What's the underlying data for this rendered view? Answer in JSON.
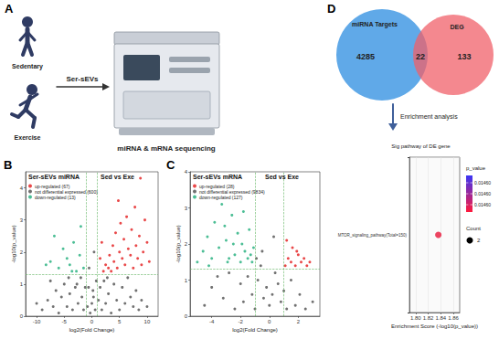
{
  "panel_a": {
    "letter": "A",
    "groups": [
      "Sedentary",
      "Exercise"
    ],
    "arrow_label": "Ser-sEVs",
    "machine_label": "miRNA & mRNA sequencing"
  },
  "venn": {
    "letter": "D",
    "sets": [
      {
        "label": "miRNA Targets",
        "count": 4285,
        "color": "#4fa0e6"
      },
      {
        "label": "DEG",
        "count": 133,
        "color": "#f0606a"
      }
    ],
    "overlap": 22,
    "arrow_label": "Enrichment analysis"
  },
  "chart_data": [
    {
      "type": "scatter",
      "panel": "B",
      "title": "Ser-sEVs miRNA",
      "subtitle": "Sed vs Exe",
      "xlabel": "log2(Fold Change)",
      "ylabel": "-log10(p_value)",
      "xlim": [
        -12,
        12
      ],
      "xticks": [
        -10,
        -5,
        0,
        5,
        10
      ],
      "ylim": [
        0,
        4.5
      ],
      "yticks": [
        0,
        1,
        2,
        3,
        4
      ],
      "grid": false,
      "legend": "top-left",
      "marker": "circle",
      "threshold_lines": {
        "x": [
          -1,
          1
        ],
        "y": [
          1.3
        ]
      },
      "series": [
        {
          "name": "up-regulated (67)",
          "color": "#e41a1c",
          "x": [
            1.5,
            1.8,
            2.1,
            2.5,
            3.0,
            3.2,
            3.5,
            3.8,
            4.0,
            4.3,
            4.6,
            4.8,
            5.0,
            5.2,
            5.5,
            5.8,
            6.0,
            6.3,
            6.6,
            7.0,
            7.2,
            7.5,
            7.8,
            8.0,
            8.3,
            8.6,
            8.8,
            9.0,
            9.3,
            9.6,
            10.0,
            10.4
          ],
          "values": [
            1.8,
            2.3,
            1.4,
            1.6,
            1.5,
            1.9,
            1.4,
            2.2,
            1.7,
            2.6,
            1.5,
            3.6,
            2.0,
            2.9,
            1.8,
            2.4,
            1.6,
            3.1,
            2.1,
            1.9,
            2.7,
            1.5,
            3.4,
            2.2,
            1.8,
            2.5,
            4.3,
            1.6,
            2.0,
            3.0,
            2.3,
            1.7
          ]
        },
        {
          "name": "not differential expressed (600)",
          "color": "#4d4d4d",
          "x": [
            -10,
            -9,
            -8,
            -7.5,
            -7,
            -6.5,
            -6,
            -5.5,
            -5,
            -4.5,
            -4.2,
            -4,
            -3.5,
            -3,
            -2.7,
            -2.5,
            -2,
            -1.8,
            -1.5,
            -1.2,
            -0.8,
            -0.6,
            -0.5,
            -0.3,
            0,
            0.2,
            0.3,
            0.4,
            0.6,
            0.8,
            1.2,
            1.5,
            1.8,
            2.2,
            2.5,
            2.8,
            3,
            3.5,
            4,
            4.5,
            5,
            5.5,
            6,
            6.5,
            7,
            7.5,
            8,
            8.5,
            9,
            10
          ],
          "values": [
            0.4,
            0.2,
            0.5,
            1.1,
            0.3,
            0.8,
            0.1,
            0.6,
            1.0,
            0.3,
            1.2,
            0.7,
            0.2,
            0.9,
            1.0,
            0.4,
            1.2,
            0.6,
            0.2,
            0.9,
            0.3,
            0.9,
            1.5,
            0.1,
            0.4,
            0.8,
            0.6,
            2.0,
            0.2,
            1.1,
            0.5,
            0.9,
            0.2,
            1.1,
            0.4,
            1.2,
            0.7,
            0.1,
            1.0,
            0.5,
            0.2,
            0.9,
            0.4,
            1.2,
            0.6,
            0.3,
            0.8,
            0.2,
            0.5,
            0.3
          ]
        },
        {
          "name": "down-regulated (13)",
          "color": "#1fae7a",
          "x": [
            -8.3,
            -7.5,
            -6.8,
            -6.0,
            -5.2,
            -4.5,
            -4.0,
            -3.6,
            -3.3,
            -2.8,
            -2.2,
            -2.0,
            -1.5
          ],
          "values": [
            1.6,
            1.7,
            2.5,
            1.5,
            2.1,
            1.8,
            1.6,
            1.4,
            2.3,
            1.4,
            1.9,
            2.8,
            1.5
          ]
        }
      ]
    },
    {
      "type": "scatter",
      "panel": "C",
      "title": "Ser-sEVs mRNA",
      "subtitle": "Sed vs Exe",
      "xlabel": "log2(Fold Change)",
      "ylabel": "-log10(p_value)",
      "xlim": [
        -5.5,
        3.5
      ],
      "xticks": [
        -4,
        -2,
        0,
        2
      ],
      "ylim": [
        0,
        4
      ],
      "yticks": [
        0,
        1,
        2,
        3,
        4
      ],
      "grid": false,
      "legend": "top-left",
      "marker": "circle",
      "threshold_lines": {
        "x": [
          -1,
          1
        ],
        "y": [
          1.3
        ]
      },
      "series": [
        {
          "name": "up-regulated (28)",
          "color": "#e41a1c",
          "x": [
            1.1,
            1.3,
            1.5,
            1.6,
            1.8,
            2.0,
            2.2,
            2.4,
            2.6,
            1.2,
            1.9,
            2.8
          ],
          "values": [
            1.4,
            1.6,
            1.5,
            1.9,
            1.4,
            1.7,
            1.5,
            1.6,
            1.4,
            2.1,
            1.8,
            1.5
          ]
        },
        {
          "name": "not differential expressed (9834)",
          "color": "#4d4d4d",
          "x": [
            -4.5,
            -4,
            -3.6,
            -3.2,
            -2.8,
            -2.4,
            -2,
            -1.8,
            -1.5,
            -1.2,
            -1,
            -0.8,
            -0.6,
            -0.4,
            -0.2,
            0,
            0.2,
            0.4,
            0.6,
            0.8,
            1,
            1.2,
            1.5,
            1.8,
            2.1,
            2.5,
            3,
            -0.5,
            0.3,
            -0.9
          ],
          "values": [
            0.3,
            0.8,
            1.1,
            0.5,
            1.2,
            0.2,
            0.9,
            0.4,
            1.1,
            0.6,
            0.2,
            1.0,
            1.4,
            0.5,
            0.8,
            0.3,
            0.6,
            1.2,
            0.9,
            0.4,
            0.7,
            0.2,
            1.0,
            0.3,
            0.6,
            0.2,
            0.4,
            1.8,
            2.2,
            1.6
          ]
        },
        {
          "name": "down-regulated (127)",
          "color": "#1fae7a",
          "x": [
            -5.0,
            -4.6,
            -4.3,
            -4.0,
            -3.8,
            -3.5,
            -3.3,
            -3.0,
            -2.8,
            -2.6,
            -2.4,
            -2.2,
            -2.0,
            -1.9,
            -1.7,
            -1.5,
            -1.4,
            -1.2,
            -1.1,
            -3.1,
            -2.5,
            -1.8,
            -4.2,
            -2.9,
            -1.3
          ],
          "values": [
            1.5,
            1.8,
            2.2,
            1.6,
            2.6,
            1.9,
            3.1,
            2.1,
            1.6,
            2.8,
            1.7,
            2.3,
            1.5,
            2.0,
            1.8,
            1.6,
            2.4,
            1.5,
            1.9,
            2.5,
            2.0,
            2.9,
            1.4,
            1.5,
            1.7
          ]
        }
      ]
    },
    {
      "type": "scatter",
      "title": "Sig pathway of DE gene",
      "xlabel": "Enrichment Score (-log10(p_value))",
      "categories": [
        "MTOR_signaling_pathway(Total=150)"
      ],
      "values": [
        1.836
      ],
      "sizes": [
        2
      ],
      "size_title": "Count",
      "color": "#e8173a",
      "xlim": [
        1.79,
        1.87
      ],
      "xticks": [
        {
          "value": 1.8,
          "label": "1.80"
        },
        {
          "value": 1.82,
          "label": "1.82"
        },
        {
          "value": 1.84,
          "label": "1.84"
        },
        {
          "value": 1.86,
          "label": "1.86"
        }
      ],
      "grid": true,
      "legend": "right",
      "marker": "circle",
      "colorbar": {
        "title": "p_value",
        "range": [
          0.014595,
          0.014605
        ],
        "ticks": [
          {
            "value": 0.014597,
            "label": "0.01460"
          },
          {
            "value": 0.0146,
            "label": "0.01460"
          },
          {
            "value": 0.014603,
            "label": "0.01460"
          }
        ],
        "colors": [
          "#ff1a3c",
          "#3a36f5"
        ]
      }
    }
  ]
}
